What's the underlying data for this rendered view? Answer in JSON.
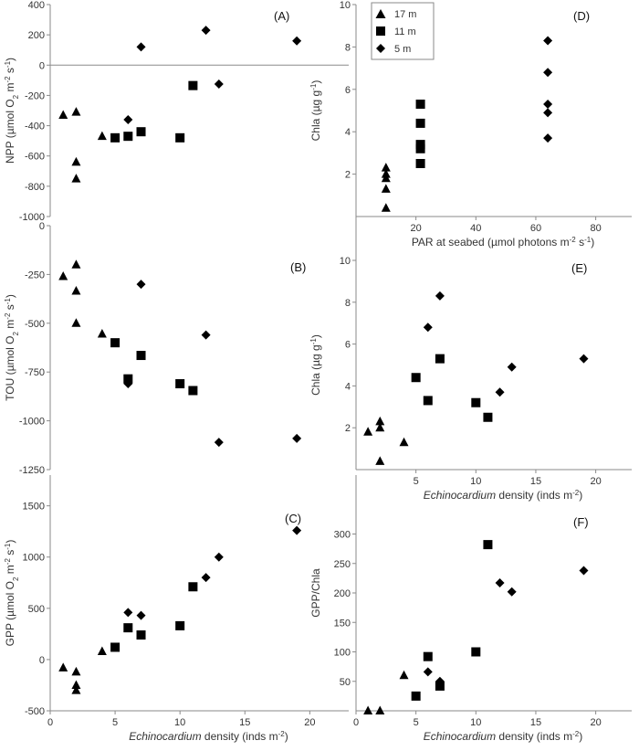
{
  "figure": {
    "legend": [
      {
        "label": "17 m",
        "marker": "triangle"
      },
      {
        "label": "11 m",
        "marker": "square"
      },
      {
        "label": "5 m",
        "marker": "diamond"
      }
    ]
  },
  "chart_data": [
    {
      "id": "A",
      "type": "scatter",
      "panel_label": "(A)",
      "ylabel": "NPP (µmol O2 m-2 s-1)",
      "xlabel": "",
      "xlim": [
        0,
        23
      ],
      "ylim": [
        -1000,
        400
      ],
      "xticks": [],
      "xtick_labels": [],
      "yticks": [
        -1000,
        -800,
        -600,
        -400,
        -200,
        0,
        200,
        400
      ],
      "ytick_labels": [
        "-1000",
        "-800",
        "-600",
        "-400",
        "-200",
        "0",
        "200",
        "400"
      ],
      "series": [
        {
          "name": "17 m",
          "marker": "triangle",
          "points": [
            [
              1,
              -330
            ],
            [
              2,
              -310
            ],
            [
              2,
              -640
            ],
            [
              2,
              -750
            ],
            [
              4,
              -470
            ]
          ]
        },
        {
          "name": "11 m",
          "marker": "square",
          "points": [
            [
              5,
              -480
            ],
            [
              6,
              -470
            ],
            [
              7,
              -440
            ],
            [
              10,
              -480
            ],
            [
              11,
              -135
            ]
          ]
        },
        {
          "name": "5 m",
          "marker": "diamond",
          "points": [
            [
              6,
              -360
            ],
            [
              7,
              120
            ],
            [
              12,
              230
            ],
            [
              13,
              -125
            ],
            [
              19,
              160
            ]
          ]
        }
      ]
    },
    {
      "id": "B",
      "type": "scatter",
      "panel_label": "(B)",
      "ylabel": "TOU (µmol O2 m-2 s-1)",
      "xlabel": "",
      "xlim": [
        0,
        23
      ],
      "ylim": [
        -1250,
        0
      ],
      "xticks": [],
      "xtick_labels": [],
      "yticks": [
        -1250,
        -1000,
        -750,
        -500,
        -250,
        0
      ],
      "ytick_labels": [
        "-1250",
        "-1000",
        "-750",
        "-500",
        "-250",
        "0"
      ],
      "series": [
        {
          "name": "17 m",
          "marker": "triangle",
          "points": [
            [
              1,
              -260
            ],
            [
              2,
              -200
            ],
            [
              2,
              -335
            ],
            [
              2,
              -500
            ],
            [
              4,
              -555
            ]
          ]
        },
        {
          "name": "11 m",
          "marker": "square",
          "points": [
            [
              5,
              -600
            ],
            [
              6,
              -785
            ],
            [
              7,
              -665
            ],
            [
              10,
              -810
            ],
            [
              11,
              -845
            ]
          ]
        },
        {
          "name": "5 m",
          "marker": "diamond",
          "points": [
            [
              6,
              -810
            ],
            [
              7,
              -300
            ],
            [
              12,
              -560
            ],
            [
              13,
              -1110
            ],
            [
              19,
              -1090
            ]
          ]
        }
      ]
    },
    {
      "id": "C",
      "type": "scatter",
      "panel_label": "(C)",
      "ylabel": "GPP (µmol O2 m-2 s-1)",
      "xlabel": "Echinocardium density (inds m-2)",
      "xlim": [
        0,
        23
      ],
      "ylim": [
        -500,
        1800
      ],
      "xticks": [
        0,
        5,
        10,
        15,
        20
      ],
      "xtick_labels": [
        "0",
        "5",
        "10",
        "15",
        "20"
      ],
      "yticks": [
        -500,
        0,
        500,
        1000,
        1500
      ],
      "ytick_labels": [
        "-500",
        "0",
        "500",
        "1000",
        "1500"
      ],
      "series": [
        {
          "name": "17 m",
          "marker": "triangle",
          "points": [
            [
              1,
              -80
            ],
            [
              2,
              -120
            ],
            [
              2,
              -250
            ],
            [
              2,
              -300
            ],
            [
              4,
              80
            ]
          ]
        },
        {
          "name": "11 m",
          "marker": "square",
          "points": [
            [
              5,
              120
            ],
            [
              6,
              310
            ],
            [
              7,
              240
            ],
            [
              10,
              330
            ],
            [
              11,
              710
            ]
          ]
        },
        {
          "name": "5 m",
          "marker": "diamond",
          "points": [
            [
              6,
              460
            ],
            [
              7,
              430
            ],
            [
              12,
              800
            ],
            [
              13,
              1000
            ],
            [
              19,
              1260
            ]
          ]
        }
      ]
    },
    {
      "id": "D",
      "type": "scatter",
      "panel_label": "(D)",
      "ylabel": "Chla (µg g-1)",
      "xlabel": "PAR at seabed (µmol photons m-2 s-1)",
      "xlim": [
        0,
        92
      ],
      "ylim": [
        0,
        10
      ],
      "xticks": [
        20,
        40,
        60,
        80
      ],
      "xtick_labels": [
        "20",
        "40",
        "60",
        "80"
      ],
      "yticks": [
        2,
        4,
        6,
        8,
        10
      ],
      "ytick_labels": [
        "2",
        "4",
        "6",
        "8",
        "10"
      ],
      "series": [
        {
          "name": "17 m",
          "marker": "triangle",
          "points": [
            [
              10,
              2.3
            ],
            [
              10,
              2.0
            ],
            [
              10,
              1.8
            ],
            [
              10,
              1.3
            ],
            [
              10,
              0.4
            ]
          ]
        },
        {
          "name": "11 m",
          "marker": "square",
          "points": [
            [
              21.5,
              5.3
            ],
            [
              21.5,
              4.4
            ],
            [
              21.5,
              3.4
            ],
            [
              21.5,
              3.2
            ],
            [
              21.5,
              2.5
            ]
          ]
        },
        {
          "name": "5 m",
          "marker": "diamond",
          "points": [
            [
              64,
              8.3
            ],
            [
              64,
              6.8
            ],
            [
              64,
              5.3
            ],
            [
              64,
              4.9
            ],
            [
              64,
              3.7
            ]
          ]
        }
      ]
    },
    {
      "id": "E",
      "type": "scatter",
      "panel_label": "(E)",
      "ylabel": "Chla (µg g-1)",
      "xlabel": "Echinocardium density (inds m-2)",
      "xlim": [
        0,
        23
      ],
      "ylim": [
        0,
        10
      ],
      "xticks": [
        5,
        10,
        15,
        20
      ],
      "xtick_labels": [
        "5",
        "10",
        "15",
        "20"
      ],
      "yticks": [
        2,
        4,
        6,
        8,
        10
      ],
      "ytick_labels": [
        "2",
        "4",
        "6",
        "8",
        "10"
      ],
      "series": [
        {
          "name": "17 m",
          "marker": "triangle",
          "points": [
            [
              1,
              1.8
            ],
            [
              2,
              2.3
            ],
            [
              2,
              2.0
            ],
            [
              2,
              0.4
            ],
            [
              4,
              1.3
            ]
          ]
        },
        {
          "name": "11 m",
          "marker": "square",
          "points": [
            [
              5,
              4.4
            ],
            [
              6,
              3.3
            ],
            [
              7,
              5.3
            ],
            [
              10,
              3.2
            ],
            [
              11,
              2.5
            ]
          ]
        },
        {
          "name": "5 m",
          "marker": "diamond",
          "points": [
            [
              6,
              6.8
            ],
            [
              7,
              8.3
            ],
            [
              12,
              3.7
            ],
            [
              13,
              4.9
            ],
            [
              19,
              5.3
            ]
          ]
        }
      ]
    },
    {
      "id": "F",
      "type": "scatter",
      "panel_label": "(F)",
      "ylabel": "GPP/Chla",
      "xlabel": "Echinocardium density (inds m-2)",
      "xlim": [
        0,
        23
      ],
      "ylim": [
        0,
        400
      ],
      "xticks": [
        0,
        5,
        10,
        15,
        20
      ],
      "xtick_labels": [
        "0",
        "5",
        "10",
        "15",
        "20"
      ],
      "yticks": [
        50,
        100,
        150,
        200,
        250,
        300
      ],
      "ytick_labels": [
        "50",
        "100",
        "150",
        "200",
        "250",
        "300"
      ],
      "series": [
        {
          "name": "17 m",
          "marker": "triangle",
          "points": [
            [
              1,
              0
            ],
            [
              2,
              0
            ],
            [
              4,
              60
            ]
          ]
        },
        {
          "name": "11 m",
          "marker": "square",
          "points": [
            [
              5,
              25
            ],
            [
              6,
              92
            ],
            [
              7,
              42
            ],
            [
              10,
              100
            ],
            [
              11,
              282
            ]
          ]
        },
        {
          "name": "5 m",
          "marker": "diamond",
          "points": [
            [
              6,
              66
            ],
            [
              7,
              50
            ],
            [
              12,
              217
            ],
            [
              13,
              202
            ],
            [
              19,
              238
            ]
          ]
        }
      ]
    }
  ]
}
